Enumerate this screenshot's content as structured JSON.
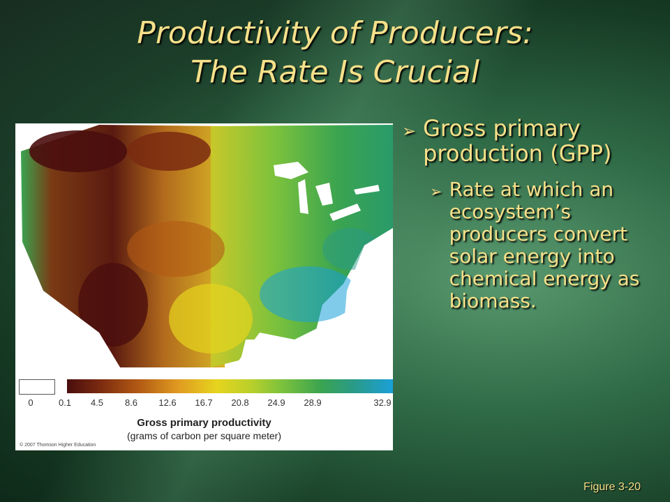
{
  "slide": {
    "title_line1": "Productivity of Producers:",
    "title_line2": "The Rate Is Crucial",
    "figure_label": "Figure 3-20"
  },
  "bullets": {
    "main": "Gross primary production (GPP)",
    "sub": "Rate at which an ecosystem’s producers convert solar energy into chemical energy as biomass."
  },
  "legend": {
    "ticks": [
      "0",
      "0.1",
      "4.5",
      "8.6",
      "12.6",
      "16.7",
      "20.8",
      "24.9",
      "28.9",
      "32.9"
    ],
    "title": "Gross primary productivity",
    "subtitle": "(grams of carbon per square meter)",
    "copyright": "© 2007 Thomson Higher Education"
  },
  "colors": {
    "accent_text": "#f6e08a",
    "scale_low": "#4a0e0e",
    "scale_mid": "#e6d41e",
    "scale_high": "#1aa0d8"
  }
}
